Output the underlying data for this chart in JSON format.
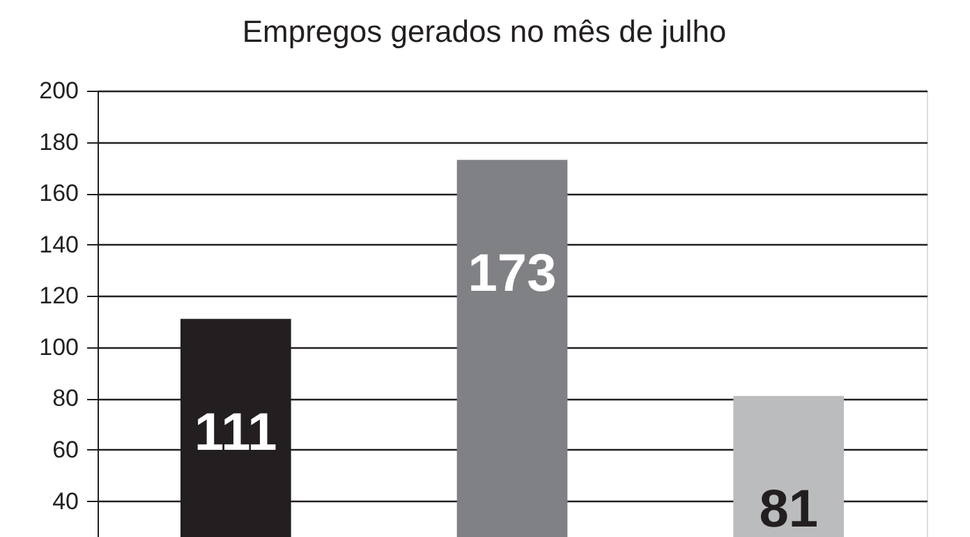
{
  "chart_data": {
    "type": "bar",
    "title": "Empregos gerados no mês de julho",
    "categories": [
      null,
      null,
      null
    ],
    "values": [
      111,
      173,
      81
    ],
    "colors": [
      "#231f20",
      "#808185",
      "#bbbcbe"
    ],
    "ylim": [
      26,
      200
    ],
    "yticks": [
      40,
      60,
      80,
      100,
      120,
      140,
      160,
      180,
      200
    ],
    "grid": "y",
    "data_labels": true
  }
}
